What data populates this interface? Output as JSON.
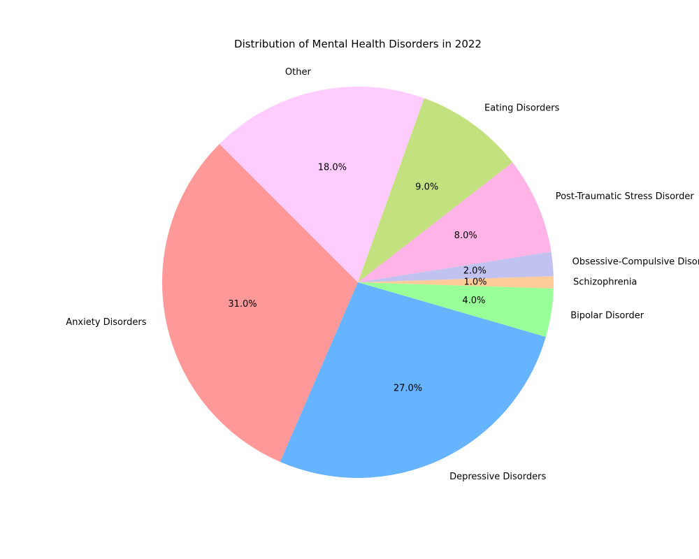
{
  "chart_data": {
    "type": "pie",
    "title": "Distribution of Mental Health Disorders in 2022",
    "start_angle_deg": 135,
    "direction": "counterclockwise",
    "slices": [
      {
        "label": "Anxiety Disorders",
        "value": 31.0,
        "pct_label": "31.0%",
        "color": "#ff9999"
      },
      {
        "label": "Depressive Disorders",
        "value": 27.0,
        "pct_label": "27.0%",
        "color": "#66b3ff"
      },
      {
        "label": "Bipolar Disorder",
        "value": 4.0,
        "pct_label": "4.0%",
        "color": "#99ff99"
      },
      {
        "label": "Schizophrenia",
        "value": 1.0,
        "pct_label": "1.0%",
        "color": "#ffcc99"
      },
      {
        "label": "Obsessive-Compulsive Disorder",
        "value": 2.0,
        "pct_label": "2.0%",
        "color": "#c2c2f0"
      },
      {
        "label": "Post-Traumatic Stress Disorder",
        "value": 8.0,
        "pct_label": "8.0%",
        "color": "#ffb3e6"
      },
      {
        "label": "Eating Disorders",
        "value": 9.0,
        "pct_label": "9.0%",
        "color": "#c4e17f"
      },
      {
        "label": "Other",
        "value": 18.0,
        "pct_label": "18.0%",
        "color": "#ffccff"
      }
    ]
  }
}
